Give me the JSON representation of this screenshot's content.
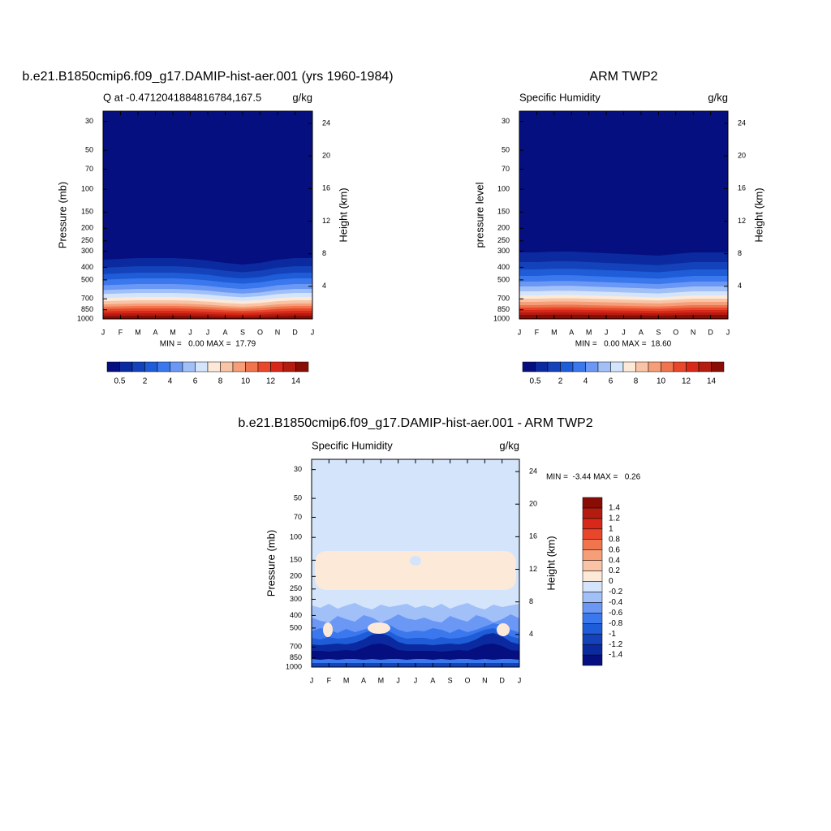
{
  "chart_data": [
    {
      "type": "contour",
      "title": "b.e21.B1850cmip6.f09_g17.DAMIP-hist-aer.001 (yrs 1960-1984)",
      "subtitle_left": "Q at -0.4712041884816784,167.5",
      "subtitle_right": "g/kg",
      "ylabel": "Pressure (mb)",
      "y2label": "Height (km)",
      "categories": [
        "J",
        "F",
        "M",
        "A",
        "M",
        "J",
        "J",
        "A",
        "S",
        "O",
        "N",
        "D",
        "J"
      ],
      "log_y": true,
      "ylim": [
        1000,
        25
      ],
      "yticks": [
        30,
        50,
        70,
        100,
        150,
        200,
        250,
        300,
        400,
        500,
        700,
        850,
        1000
      ],
      "y2lim": [
        0,
        25.5
      ],
      "y2ticks": [
        4,
        8,
        12,
        16,
        20,
        24
      ],
      "stats": "MIN =   0.00 MAX =  17.79",
      "colorbar": {
        "orientation": "horizontal",
        "levels": [
          0.5,
          1,
          2,
          3,
          4,
          5,
          6,
          7,
          8,
          9,
          10,
          11,
          12,
          13,
          14
        ],
        "ticks": [
          0.5,
          2,
          4,
          6,
          8,
          10,
          12,
          14
        ],
        "colors": [
          "#050f80",
          "#0b2aa0",
          "#1442bb",
          "#1f5cd8",
          "#3b78ee",
          "#6b98f5",
          "#a2c0f8",
          "#d4e4fb",
          "#fde9d8",
          "#f9c4a6",
          "#f59e77",
          "#f0744d",
          "#e9472b",
          "#d8281a",
          "#b41c10",
          "#8a0d05"
        ]
      }
    },
    {
      "type": "contour",
      "title": "ARM TWP2",
      "subtitle_left": "Specific Humidity",
      "subtitle_right": "g/kg",
      "ylabel": "pressure level",
      "y2label": "Height (km)",
      "categories": [
        "J",
        "F",
        "M",
        "A",
        "M",
        "J",
        "J",
        "A",
        "S",
        "O",
        "N",
        "D",
        "J"
      ],
      "log_y": true,
      "ylim": [
        1000,
        25
      ],
      "yticks": [
        30,
        50,
        70,
        100,
        150,
        200,
        250,
        300,
        400,
        500,
        700,
        850,
        1000
      ],
      "y2lim": [
        0,
        25.5
      ],
      "y2ticks": [
        4,
        8,
        12,
        16,
        20,
        24
      ],
      "stats": "MIN =   0.00 MAX =  18.60",
      "colorbar": {
        "orientation": "horizontal",
        "levels": [
          0.5,
          1,
          2,
          3,
          4,
          5,
          6,
          7,
          8,
          9,
          10,
          11,
          12,
          13,
          14
        ],
        "ticks": [
          0.5,
          2,
          4,
          6,
          8,
          10,
          12,
          14
        ],
        "colors": [
          "#050f80",
          "#0b2aa0",
          "#1442bb",
          "#1f5cd8",
          "#3b78ee",
          "#6b98f5",
          "#a2c0f8",
          "#d4e4fb",
          "#fde9d8",
          "#f9c4a6",
          "#f59e77",
          "#f0744d",
          "#e9472b",
          "#d8281a",
          "#b41c10",
          "#8a0d05"
        ]
      }
    },
    {
      "type": "contour",
      "title": "b.e21.B1850cmip6.f09_g17.DAMIP-hist-aer.001 - ARM TWP2",
      "subtitle_left": "Specific Humidity",
      "subtitle_right": "g/kg",
      "ylabel": "Pressure (mb)",
      "y2label": "Height (km)",
      "categories": [
        "J",
        "F",
        "M",
        "A",
        "M",
        "J",
        "J",
        "A",
        "S",
        "O",
        "N",
        "D",
        "J"
      ],
      "log_y": true,
      "ylim": [
        1000,
        25
      ],
      "yticks": [
        30,
        50,
        70,
        100,
        150,
        200,
        250,
        300,
        400,
        500,
        700,
        850,
        1000
      ],
      "y2lim": [
        0,
        25.5
      ],
      "y2ticks": [
        4,
        8,
        12,
        16,
        20,
        24
      ],
      "stats": "MIN =  -3.44 MAX =   0.26",
      "colorbar": {
        "orientation": "vertical",
        "levels": [
          -1.4,
          -1.2,
          -1,
          -0.8,
          -0.6,
          -0.4,
          -0.2,
          0,
          0.2,
          0.4,
          0.6,
          0.8,
          1,
          1.2,
          1.4
        ],
        "ticks": [
          -1.4,
          -1.2,
          -1,
          -0.8,
          -0.6,
          -0.4,
          -0.2,
          0,
          0.2,
          0.4,
          0.6,
          0.8,
          1,
          1.2,
          1.4
        ],
        "colors": [
          "#050f80",
          "#0b2aa0",
          "#1442bb",
          "#1f5cd8",
          "#3b78ee",
          "#6b98f5",
          "#a2c0f8",
          "#d4e4fb",
          "#fde9d8",
          "#f9c4a6",
          "#f59e77",
          "#f0744d",
          "#e9472b",
          "#d8281a",
          "#b41c10",
          "#8a0d05"
        ]
      }
    }
  ]
}
